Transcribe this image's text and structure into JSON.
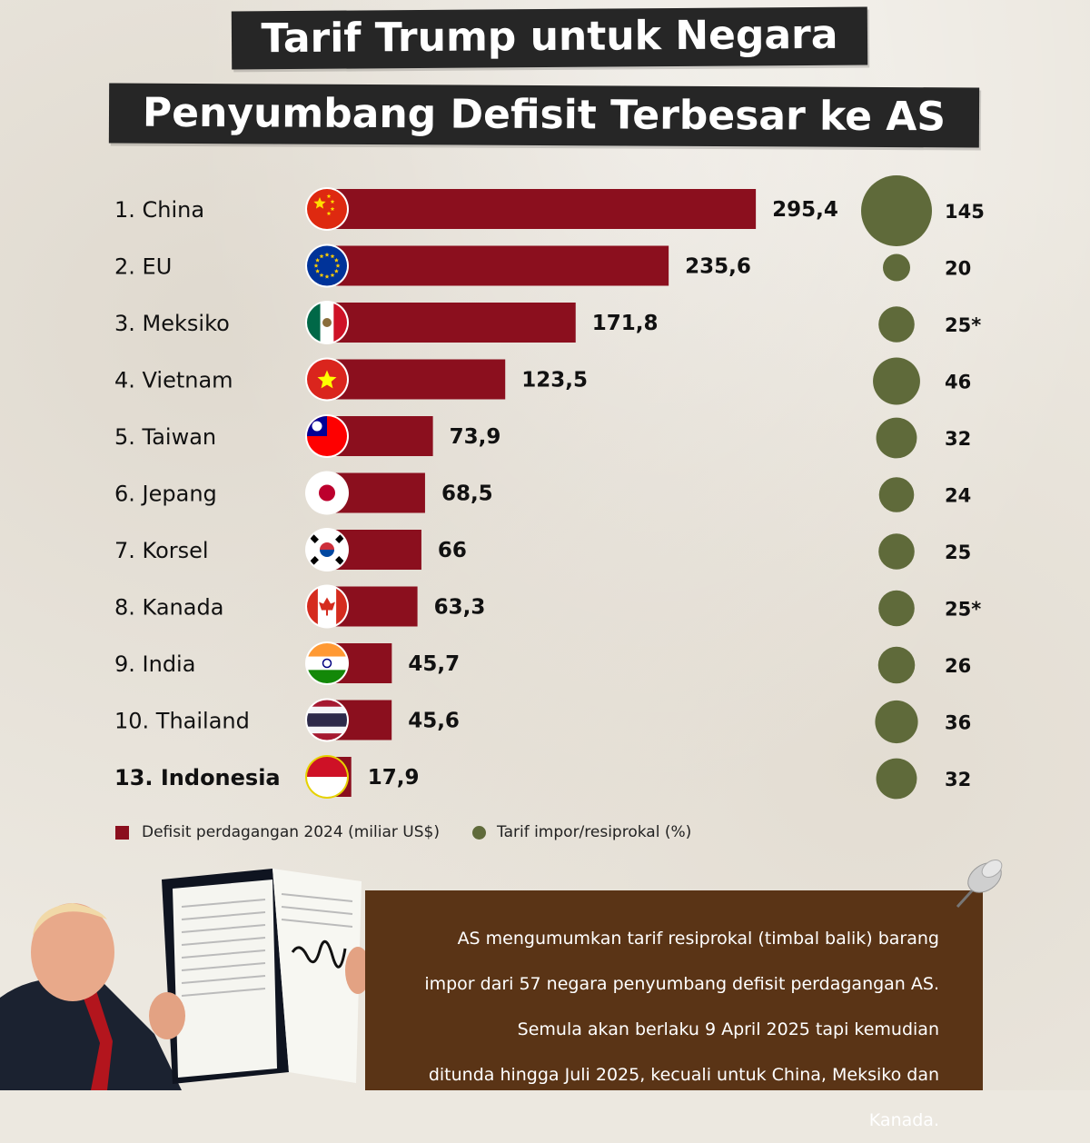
{
  "title": {
    "line1": "Tarif Trump untuk Negara",
    "line2": "Penyumbang Defisit Terbesar ke AS"
  },
  "colors": {
    "bar": "#8b0f1e",
    "bubble": "#5f6a3a",
    "note_bg": "#5a3416"
  },
  "chart_data": {
    "type": "bar",
    "orientation": "horizontal",
    "categories": [
      "1. China",
      "2. EU",
      "3. Meksiko",
      "4. Vietnam",
      "5. Taiwan",
      "6. Jepang",
      "7. Korsel",
      "8. Kanada",
      "9. India",
      "10. Thailand",
      "13. Indonesia"
    ],
    "highlighted_category": "13. Indonesia",
    "series": [
      {
        "name": "Defisit perdagangan 2024 (miliar US$)",
        "values": [
          295.4,
          235.6,
          171.8,
          123.5,
          73.9,
          68.5,
          66,
          63.3,
          45.7,
          45.6,
          17.9
        ],
        "value_labels": [
          "295,4",
          "235,6",
          "171,8",
          "123,5",
          "73,9",
          "68,5",
          "66",
          "63,3",
          "45,7",
          "45,6",
          "17,9"
        ]
      },
      {
        "name": "Tarif impor/resiprokal (%)",
        "values": [
          145,
          20,
          25,
          46,
          32,
          24,
          25,
          25,
          26,
          36,
          32
        ],
        "value_labels": [
          "145",
          "20",
          "25*",
          "46",
          "32",
          "24",
          "25",
          "25*",
          "26",
          "36",
          "32"
        ]
      }
    ],
    "flags": [
      "china",
      "eu",
      "mexico",
      "vietnam",
      "taiwan",
      "japan",
      "south-korea",
      "canada",
      "india",
      "thailand",
      "indonesia"
    ],
    "legend_position": "bottom-left",
    "grid": false
  },
  "legend": {
    "deficit": "Defisit perdagangan 2024 (miliar US$)",
    "tariff": "Tarif impor/resiprokal (%)"
  },
  "note": [
    "AS mengumumkan tarif resiprokal (timbal balik) barang",
    "impor dari 57 negara penyumbang defisit perdagangan AS.",
    "Semula akan berlaku 9 April 2025 tapi kemudian",
    "ditunda hingga Juli 2025, kecuali untuk China, Meksiko dan Kanada."
  ]
}
